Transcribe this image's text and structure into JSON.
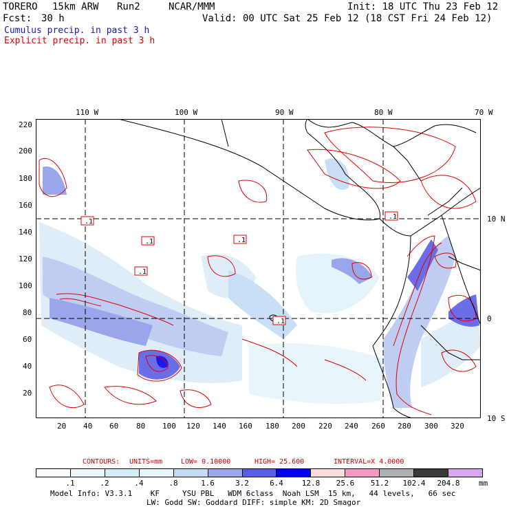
{
  "header": {
    "model": "TORERO",
    "resolution": "15km ARW",
    "run": "Run2",
    "org": "NCAR/MMM",
    "init": "Init: 18 UTC Thu 23 Feb 12",
    "fcst_label": "Fcst:",
    "fcst_value": "30 h",
    "valid": "Valid: 00 UTC Sat 25 Feb 12 (18 CST Fri 24 Feb 12)"
  },
  "legend": {
    "cumulus": "Cumulus precip. in past 3 h",
    "explicit": "Explicit precip. in past 3 h",
    "cumulus_color": "#1a1ab0",
    "explicit_color": "#e00000"
  },
  "map": {
    "top_lon_labels": [
      "110 W",
      "100 W",
      "90 W",
      "80 W",
      "70 W"
    ],
    "right_lat_labels": [
      "10 N",
      "0",
      "10 S"
    ],
    "left_y_ticks": [
      "220",
      "200",
      "180",
      "160",
      "140",
      "120",
      "100",
      "80",
      "60",
      "40",
      "20"
    ],
    "bottom_x_ticks": [
      "20",
      "40",
      "60",
      "80",
      "100",
      "120",
      "140",
      "160",
      "180",
      "200",
      "220",
      "240",
      "260",
      "280",
      "300",
      "320"
    ],
    "contour_box_labels": [
      ".1",
      ".1",
      ".1",
      ".1",
      ".1",
      ".1"
    ]
  },
  "contour_info": {
    "label": "CONTOURS:",
    "units": "UNITS=mm",
    "low": "LOW= 0.10000",
    "high": "HIGH= 25.600",
    "interval": "INTERVAL=X 4.0000"
  },
  "colorbar": {
    "labels": [
      ".1",
      ".2",
      ".4",
      ".8",
      "1.6",
      "3.2",
      "6.4",
      "12.8",
      "25.6",
      "51.2",
      "102.4",
      "204.8"
    ],
    "unit": "mm",
    "colors": [
      "#ffffff",
      "#eaf6fb",
      "#d4eef8",
      "#e7f7f8",
      "#c4dcf4",
      "#9aa8ec",
      "#5a5ee4",
      "#0000ee",
      "#fcdcdc",
      "#f49ac4",
      "#b0b0b0",
      "#3a3a3a",
      "#d9a6f4"
    ]
  },
  "footer": {
    "line1": "Model Info: V3.3.1    KF     YSU PBL   WDM 6class  Noah LSM  15 km,   44 levels,   66 sec",
    "line2": "LW: Godd SW: Goddard DIFF: simple KM: 2D Smagor"
  }
}
